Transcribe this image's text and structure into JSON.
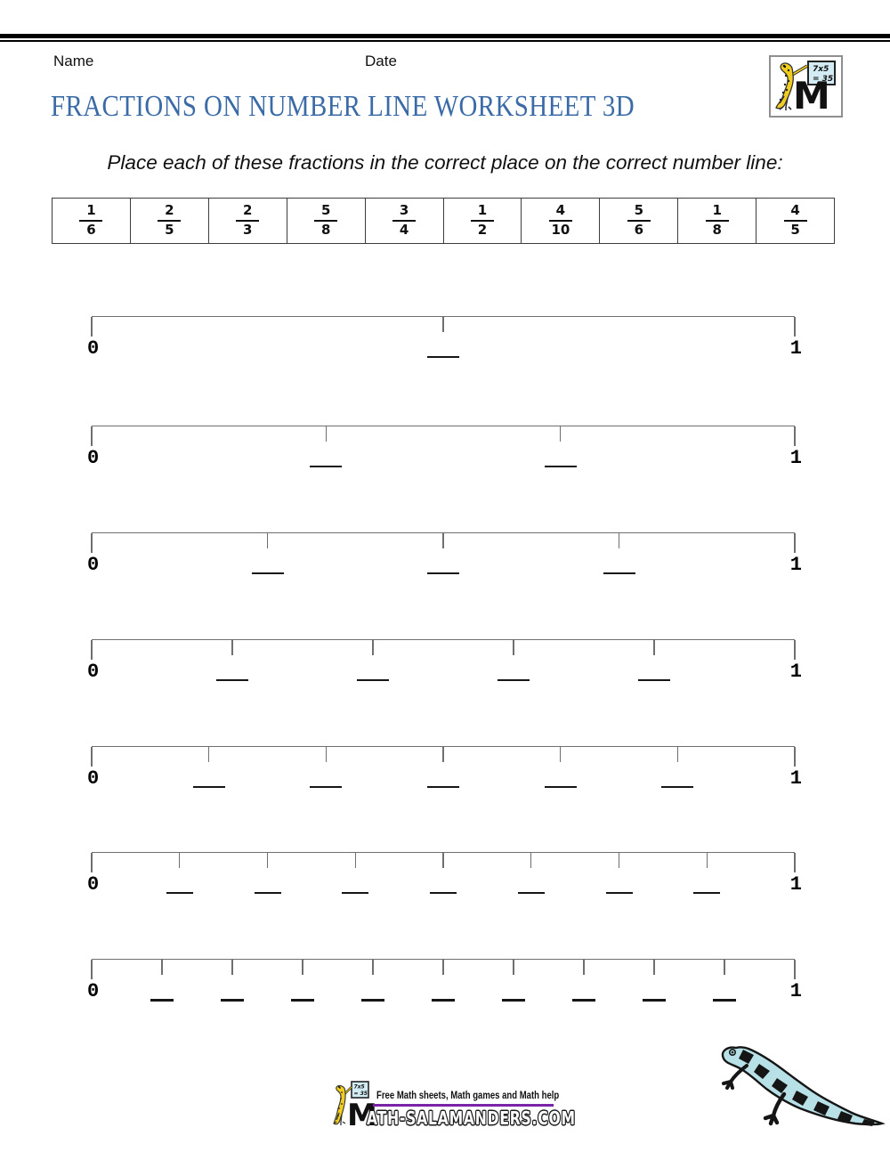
{
  "header": {
    "name_label": "Name",
    "date_label": "Date",
    "title": "FRACTIONS ON NUMBER LINE WORKSHEET 3D"
  },
  "instruction": "Place each of these fractions in the correct place on the correct number line:",
  "fractions": [
    {
      "numerator": "1",
      "denominator": "6"
    },
    {
      "numerator": "2",
      "denominator": "5"
    },
    {
      "numerator": "2",
      "denominator": "3"
    },
    {
      "numerator": "5",
      "denominator": "8"
    },
    {
      "numerator": "3",
      "denominator": "4"
    },
    {
      "numerator": "1",
      "denominator": "2"
    },
    {
      "numerator": "4",
      "denominator": "10"
    },
    {
      "numerator": "5",
      "denominator": "6"
    },
    {
      "numerator": "1",
      "denominator": "8"
    },
    {
      "numerator": "4",
      "denominator": "5"
    }
  ],
  "number_lines": [
    {
      "start_label": "0",
      "end_label": "1",
      "divisions": 2
    },
    {
      "start_label": "0",
      "end_label": "1",
      "divisions": 3
    },
    {
      "start_label": "0",
      "end_label": "1",
      "divisions": 4
    },
    {
      "start_label": "0",
      "end_label": "1",
      "divisions": 5
    },
    {
      "start_label": "0",
      "end_label": "1",
      "divisions": 6
    },
    {
      "start_label": "0",
      "end_label": "1",
      "divisions": 8
    },
    {
      "start_label": "0",
      "end_label": "1",
      "divisions": 10
    }
  ],
  "logo": {
    "board_line1": "7x5",
    "board_line2": "= 35",
    "letter": "M",
    "icon": "salamander-writing-on-board-icon"
  },
  "footer": {
    "tagline": "Free Math sheets, Math games and Math help",
    "site_text": "ATH-SALAMANDERS.COM"
  },
  "colors": {
    "title_blue": "#3b6ba7",
    "footer_purple": "#7a22a8",
    "salamander_yellow": "#f0cd1e",
    "salamander_blue": "#b7e1e6",
    "board_blue": "#d3ecf4"
  }
}
